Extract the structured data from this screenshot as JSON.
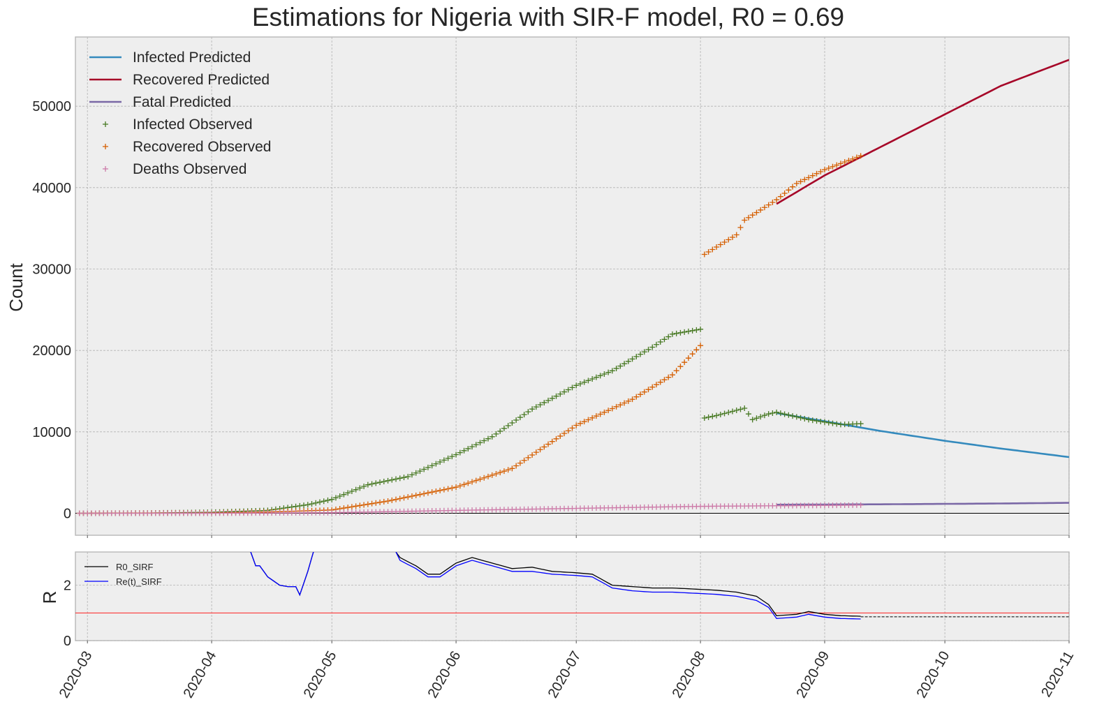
{
  "chart_data": [
    {
      "type": "line",
      "title": "Estimations for Nigeria with SIR-F model, R0 = 0.69",
      "ylabel": "Count",
      "ylim": [
        -2700,
        58500
      ],
      "xlim": [
        "2020-02-27",
        "2020-11-01"
      ],
      "yticks": [
        0,
        10000,
        20000,
        30000,
        40000,
        50000
      ],
      "ytick_labels": [
        "0",
        "10000",
        "20000",
        "30000",
        "40000",
        "50000"
      ],
      "grid": true,
      "legend_position": "top-left",
      "colors": {
        "Infected Predicted": "#348abd",
        "Recovered Predicted": "#a60628",
        "Fatal Predicted": "#7a68a6",
        "Infected Observed": "#467821",
        "Recovered Observed": "#d55e00",
        "Deaths Observed": "#cc79a7"
      },
      "series": [
        {
          "name": "Infected Predicted",
          "kind": "line",
          "x": [
            "2020-08-20",
            "2020-09-01",
            "2020-09-15",
            "2020-10-01",
            "2020-10-15",
            "2020-11-01"
          ],
          "y": [
            12300,
            11300,
            10100,
            8900,
            7950,
            6900
          ]
        },
        {
          "name": "Recovered Predicted",
          "kind": "line",
          "x": [
            "2020-08-20",
            "2020-09-01",
            "2020-09-15",
            "2020-10-01",
            "2020-10-15",
            "2020-11-01"
          ],
          "y": [
            38000,
            41500,
            45000,
            49000,
            52500,
            55700
          ]
        },
        {
          "name": "Fatal Predicted",
          "kind": "line",
          "x": [
            "2020-08-20",
            "2020-09-15",
            "2020-10-15",
            "2020-11-01"
          ],
          "y": [
            1050,
            1100,
            1200,
            1280
          ]
        },
        {
          "name": "Infected Observed",
          "kind": "marker",
          "x": [
            "2020-02-28",
            "2020-03-15",
            "2020-04-01",
            "2020-04-15",
            "2020-04-25",
            "2020-05-01",
            "2020-05-10",
            "2020-05-20",
            "2020-06-01",
            "2020-06-10",
            "2020-06-20",
            "2020-07-01",
            "2020-07-10",
            "2020-07-20",
            "2020-07-25",
            "2020-08-01",
            "2020-08-02",
            "2020-08-05",
            "2020-08-12",
            "2020-08-14",
            "2020-08-18",
            "2020-08-20",
            "2020-08-28",
            "2020-09-05",
            "2020-09-10"
          ],
          "y": [
            0,
            20,
            120,
            350,
            1050,
            1700,
            3500,
            4500,
            7200,
            9400,
            12800,
            15700,
            17500,
            20400,
            22000,
            22600,
            11700,
            12000,
            12900,
            11500,
            12200,
            12400,
            11500,
            10900,
            11000
          ]
        },
        {
          "name": "Recovered Observed",
          "kind": "marker",
          "x": [
            "2020-02-28",
            "2020-04-01",
            "2020-04-15",
            "2020-05-01",
            "2020-05-15",
            "2020-06-01",
            "2020-06-15",
            "2020-07-01",
            "2020-07-15",
            "2020-07-25",
            "2020-08-01",
            "2020-08-02",
            "2020-08-10",
            "2020-08-12",
            "2020-08-20",
            "2020-08-25",
            "2020-09-01",
            "2020-09-10"
          ],
          "y": [
            0,
            40,
            150,
            400,
            1500,
            3200,
            5500,
            10800,
            14000,
            17000,
            20600,
            31800,
            34200,
            36000,
            38500,
            40500,
            42200,
            43900
          ]
        },
        {
          "name": "Deaths Observed",
          "kind": "marker",
          "x": [
            "2020-02-28",
            "2020-04-01",
            "2020-05-01",
            "2020-06-01",
            "2020-07-01",
            "2020-08-01",
            "2020-09-10"
          ],
          "y": [
            0,
            5,
            70,
            350,
            600,
            850,
            1000
          ]
        }
      ]
    },
    {
      "type": "line",
      "ylabel": "R",
      "ylim": [
        0,
        3.2
      ],
      "xlim": [
        "2020-02-27",
        "2020-11-01"
      ],
      "yticks": [
        0,
        2
      ],
      "ytick_labels": [
        "0",
        "2"
      ],
      "xtick_labels": [
        "2020-03",
        "2020-04",
        "2020-05",
        "2020-06",
        "2020-07",
        "2020-08",
        "2020-09",
        "2020-10",
        "2020-11"
      ],
      "xticks": [
        "2020-03-01",
        "2020-04-01",
        "2020-05-01",
        "2020-06-01",
        "2020-07-01",
        "2020-08-01",
        "2020-09-01",
        "2020-10-01",
        "2020-11-01"
      ],
      "grid": true,
      "legend_position": "top-left",
      "reference_line": {
        "y": 1,
        "color": "#ff0000"
      },
      "series": [
        {
          "name": "R0_SIRF",
          "color": "#000000",
          "segments": [
            {
              "x": [
                "2020-04-10",
                "2020-04-12",
                "2020-04-13",
                "2020-04-15",
                "2020-04-18",
                "2020-04-20",
                "2020-04-22",
                "2020-04-23",
                "2020-04-25",
                "2020-04-27"
              ],
              "y": [
                3.5,
                2.7,
                2.7,
                2.3,
                2.0,
                1.95,
                1.95,
                1.65,
                2.5,
                3.5
              ]
            },
            {
              "x": [
                "2020-05-17",
                "2020-05-18",
                "2020-05-22",
                "2020-05-25",
                "2020-05-28",
                "2020-06-01",
                "2020-06-05",
                "2020-06-10",
                "2020-06-15",
                "2020-06-20",
                "2020-06-25",
                "2020-07-01",
                "2020-07-05",
                "2020-07-10",
                "2020-07-15",
                "2020-07-20",
                "2020-07-25",
                "2020-08-01",
                "2020-08-05",
                "2020-08-10",
                "2020-08-15",
                "2020-08-18",
                "2020-08-20",
                "2020-08-25",
                "2020-08-28",
                "2020-09-01",
                "2020-09-05",
                "2020-09-10"
              ],
              "y": [
                3.2,
                3.0,
                2.7,
                2.4,
                2.4,
                2.8,
                3.0,
                2.8,
                2.6,
                2.65,
                2.5,
                2.45,
                2.4,
                2.0,
                1.95,
                1.9,
                1.9,
                1.85,
                1.82,
                1.75,
                1.6,
                1.3,
                0.9,
                0.95,
                1.05,
                0.95,
                0.9,
                0.88
              ]
            }
          ]
        },
        {
          "name": "Re(t)_SIRF",
          "color": "#0000ff",
          "segments": [
            {
              "x": [
                "2020-04-10",
                "2020-04-12",
                "2020-04-13",
                "2020-04-15",
                "2020-04-18",
                "2020-04-20",
                "2020-04-22",
                "2020-04-23",
                "2020-04-25",
                "2020-04-27"
              ],
              "y": [
                3.5,
                2.7,
                2.7,
                2.3,
                2.0,
                1.95,
                1.95,
                1.65,
                2.5,
                3.5
              ]
            },
            {
              "x": [
                "2020-05-17",
                "2020-05-18",
                "2020-05-22",
                "2020-05-25",
                "2020-05-28",
                "2020-06-01",
                "2020-06-05",
                "2020-06-10",
                "2020-06-15",
                "2020-06-20",
                "2020-06-25",
                "2020-07-01",
                "2020-07-05",
                "2020-07-10",
                "2020-07-15",
                "2020-07-20",
                "2020-07-25",
                "2020-08-01",
                "2020-08-05",
                "2020-08-10",
                "2020-08-15",
                "2020-08-18",
                "2020-08-20",
                "2020-08-25",
                "2020-08-28",
                "2020-09-01",
                "2020-09-05",
                "2020-09-10"
              ],
              "y": [
                3.2,
                2.9,
                2.6,
                2.3,
                2.3,
                2.7,
                2.9,
                2.7,
                2.5,
                2.5,
                2.4,
                2.35,
                2.3,
                1.9,
                1.8,
                1.75,
                1.75,
                1.7,
                1.67,
                1.6,
                1.45,
                1.2,
                0.8,
                0.85,
                0.95,
                0.85,
                0.8,
                0.78
              ]
            }
          ]
        }
      ],
      "projection": {
        "x": [
          "2020-09-10",
          "2020-11-01"
        ],
        "y": [
          0.86,
          0.86
        ],
        "style": "dashed",
        "color": "#000000"
      }
    }
  ]
}
